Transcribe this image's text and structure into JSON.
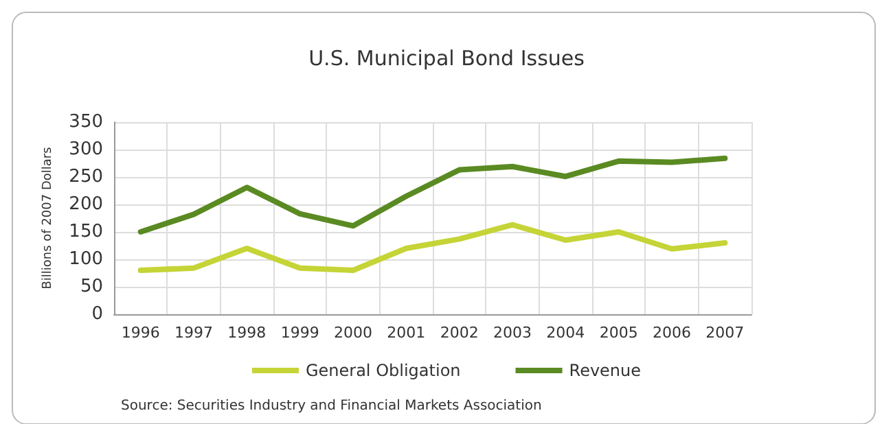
{
  "chart_data": {
    "type": "line",
    "title": "U.S. Municipal Bond Issues",
    "ylabel": "Billions of 2007 Dollars",
    "categories": [
      "1996",
      "1997",
      "1998",
      "1999",
      "2000",
      "2001",
      "2002",
      "2003",
      "2004",
      "2005",
      "2006",
      "2007"
    ],
    "series": [
      {
        "name": "General Obligation",
        "color": "#c5d436",
        "values": [
          80,
          84,
          120,
          84,
          80,
          120,
          137,
          163,
          135,
          150,
          119,
          130
        ]
      },
      {
        "name": "Revenue",
        "color": "#5a8a22",
        "values": [
          150,
          182,
          231,
          183,
          161,
          215,
          263,
          269,
          251,
          279,
          277,
          284
        ]
      }
    ],
    "ylim": [
      0,
      350
    ],
    "yticks": [
      0,
      50,
      100,
      150,
      200,
      250,
      300,
      350
    ],
    "grid": true,
    "legend": "bottom",
    "marker": "none",
    "line_style": "solid",
    "annotations": [
      "Source: Securities Industry and Financial Markets Association"
    ]
  }
}
